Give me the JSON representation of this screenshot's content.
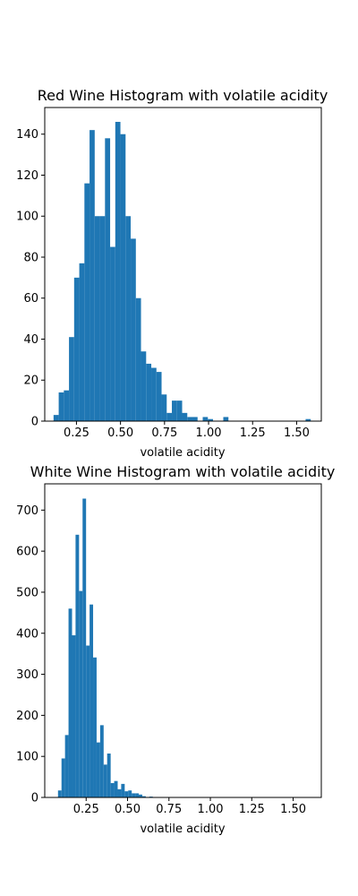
{
  "chart_data": [
    {
      "type": "bar",
      "title": "Red Wine Histogram with volatile acidity",
      "xlabel": "volatile acidity",
      "ylabel": "",
      "xlim": [
        0.07,
        1.64
      ],
      "ylim": [
        0,
        153
      ],
      "xticks": [
        0.25,
        0.5,
        0.75,
        1.0,
        1.25,
        1.5
      ],
      "xtick_labels": [
        "0.25",
        "0.50",
        "0.75",
        "1.00",
        "1.25",
        "1.50"
      ],
      "yticks": [
        0,
        20,
        40,
        60,
        80,
        100,
        120,
        140
      ],
      "ytick_labels": [
        "0",
        "20",
        "40",
        "60",
        "80",
        "100",
        "120",
        "140"
      ],
      "bar_color": "#1f77b4",
      "grid": false,
      "bin_start": 0.12,
      "bin_width": 0.0292,
      "counts": [
        3,
        14,
        15,
        41,
        70,
        77,
        116,
        142,
        100,
        100,
        138,
        85,
        146,
        140,
        100,
        89,
        60,
        34,
        28,
        26,
        24,
        13,
        4,
        10,
        10,
        4,
        2,
        2,
        0,
        2,
        1,
        0,
        0,
        2,
        0,
        0,
        0,
        0,
        0,
        0,
        0,
        0,
        0,
        0,
        0,
        0,
        0,
        0,
        0,
        1
      ]
    },
    {
      "type": "bar",
      "title": "White Wine Histogram with volatile acidity",
      "xlabel": "volatile acidity",
      "ylabel": "",
      "xlim": [
        0.0,
        1.67
      ],
      "ylim": [
        0,
        764
      ],
      "xticks": [
        0.25,
        0.5,
        0.75,
        1.0,
        1.25,
        1.5
      ],
      "xtick_labels": [
        "0.25",
        "0.50",
        "0.75",
        "1.00",
        "1.25",
        "1.50"
      ],
      "yticks": [
        0,
        100,
        200,
        300,
        400,
        500,
        600,
        700
      ],
      "ytick_labels": [
        "0",
        "100",
        "200",
        "300",
        "400",
        "500",
        "600",
        "700"
      ],
      "bar_color": "#1f77b4",
      "grid": false,
      "bin_start": 0.08,
      "bin_width": 0.0212,
      "counts": [
        17,
        95,
        152,
        460,
        395,
        640,
        503,
        728,
        370,
        470,
        341,
        134,
        176,
        80,
        107,
        35,
        40,
        20,
        33,
        15,
        17,
        10,
        10,
        7,
        3,
        0,
        2,
        0,
        0,
        0,
        0,
        0,
        0,
        0,
        0,
        0,
        0,
        0,
        0,
        0,
        0,
        0,
        0,
        0,
        0,
        0,
        0,
        0,
        0,
        0,
        0,
        0,
        0,
        0,
        0,
        0,
        0,
        0,
        0,
        0,
        0,
        0,
        0,
        0,
        0,
        0,
        0,
        0,
        0,
        1
      ]
    }
  ]
}
